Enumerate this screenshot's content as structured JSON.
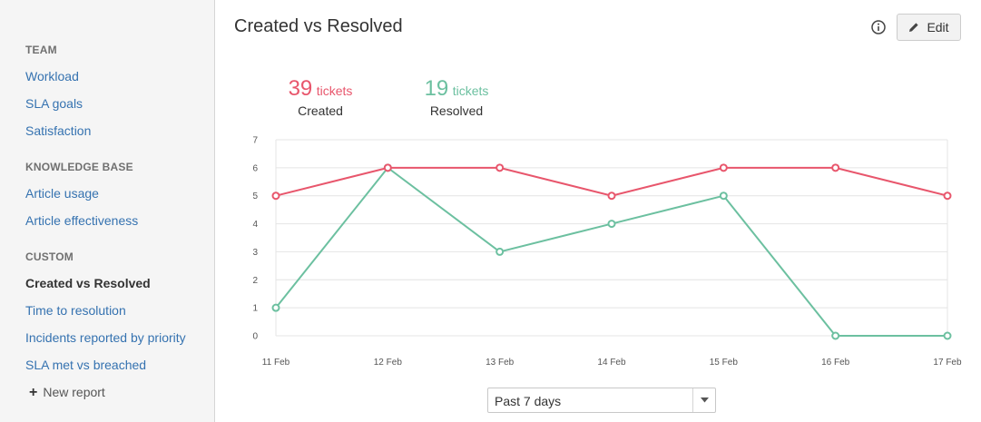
{
  "sidebar": {
    "sections": [
      {
        "heading": "TEAM",
        "items": [
          "Workload",
          "SLA goals",
          "Satisfaction"
        ]
      },
      {
        "heading": "KNOWLEDGE BASE",
        "items": [
          "Article usage",
          "Article effectiveness"
        ]
      },
      {
        "heading": "CUSTOM",
        "items": [
          "Created vs Resolved",
          "Time to resolution",
          "Incidents reported by priority",
          "SLA met vs breached"
        ]
      }
    ],
    "active_item": "Created vs Resolved",
    "new_report": "New report"
  },
  "header": {
    "title": "Created vs Resolved",
    "edit_label": "Edit",
    "info_icon": "info-icon",
    "edit_icon": "pencil-icon"
  },
  "summary": {
    "created": {
      "count": "39",
      "unit": "tickets",
      "label": "Created"
    },
    "resolved": {
      "count": "19",
      "unit": "tickets",
      "label": "Resolved"
    }
  },
  "filter": {
    "selected": "Past 7 days"
  },
  "colors": {
    "created": "#e8566c",
    "resolved": "#6cc0a0",
    "link": "#3572b0"
  },
  "chart_data": {
    "type": "line",
    "x": [
      "11 Feb",
      "12 Feb",
      "13 Feb",
      "14 Feb",
      "15 Feb",
      "16 Feb",
      "17 Feb"
    ],
    "ylim": [
      0,
      7
    ],
    "yticks": [
      0,
      1,
      2,
      3,
      4,
      5,
      6,
      7
    ],
    "grid": true,
    "series": [
      {
        "name": "Created",
        "color": "#e8566c",
        "values": [
          5,
          6,
          6,
          5,
          6,
          6,
          5
        ]
      },
      {
        "name": "Resolved",
        "color": "#6cc0a0",
        "values": [
          1,
          6,
          3,
          4,
          5,
          0,
          0
        ]
      }
    ]
  }
}
